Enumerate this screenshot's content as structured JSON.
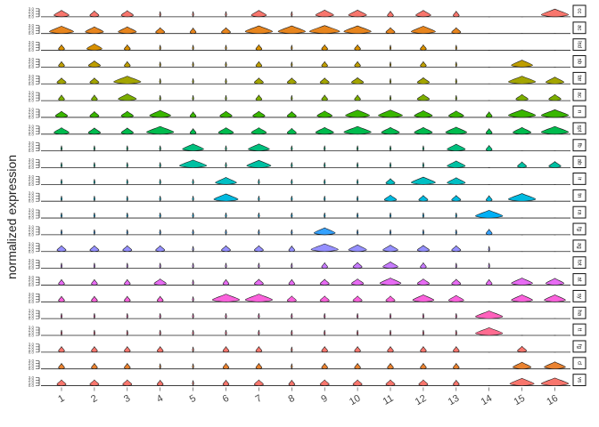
{
  "chart_data": {
    "type": "violin",
    "ylabel": "normalized expression",
    "clusters": [
      "1",
      "2",
      "3",
      "4",
      "5",
      "6",
      "7",
      "8",
      "9",
      "10",
      "11",
      "12",
      "13",
      "14",
      "15",
      "16"
    ],
    "tick_labels": [
      "0.0",
      "1.0",
      "2.0",
      "3.0"
    ],
    "genes": [
      "cc",
      "ac",
      "lsd",
      "sb",
      "tar",
      "ac",
      "n",
      "spt",
      "fb",
      "ab",
      "ir",
      "tn",
      "ra",
      "fg",
      "ag",
      "tot",
      "at",
      "sy",
      "ha",
      "tt",
      "fg",
      "cl",
      "vs"
    ],
    "colors": [
      "#F8766D",
      "#E7851E",
      "#D89000",
      "#BD9D00",
      "#A3A500",
      "#7CAE00",
      "#39B600",
      "#00BB4E",
      "#00BF7D",
      "#00C1A3",
      "#00BFC4",
      "#00BAE0",
      "#00B0F6",
      "#35A2FF",
      "#9590FF",
      "#C77CFF",
      "#E76BF3",
      "#FA62DB",
      "#FF62BC",
      "#FF6C91",
      "#F8766D",
      "#EA8331",
      "#F8766D"
    ],
    "expression_levels": [
      [
        0.5,
        0.3,
        0.4,
        0.1,
        0.1,
        0.1,
        0.5,
        0.1,
        0.6,
        0.6,
        0.2,
        0.5,
        0.2,
        0.0,
        0.0,
        0.9
      ],
      [
        0.8,
        0.6,
        0.6,
        0.3,
        0.2,
        0.3,
        0.9,
        0.9,
        1.0,
        0.9,
        0.3,
        0.8,
        0.3,
        0.0,
        0.0,
        0.0
      ],
      [
        0.2,
        0.5,
        0.2,
        0.1,
        0.1,
        0.1,
        0.2,
        0.1,
        0.2,
        0.2,
        0.1,
        0.2,
        0.1,
        0.0,
        0.0,
        0.0
      ],
      [
        0.2,
        0.4,
        0.2,
        0.1,
        0.1,
        0.1,
        0.2,
        0.1,
        0.2,
        0.2,
        0.1,
        0.2,
        0.1,
        0.0,
        0.7,
        0.0
      ],
      [
        0.3,
        0.3,
        0.9,
        0.1,
        0.1,
        0.1,
        0.3,
        0.3,
        0.3,
        0.4,
        0.1,
        0.4,
        0.1,
        0.0,
        0.9,
        0.6
      ],
      [
        0.2,
        0.2,
        0.6,
        0.1,
        0.1,
        0.1,
        0.2,
        0.1,
        0.2,
        0.2,
        0.1,
        0.4,
        0.1,
        0.0,
        0.4,
        0.4
      ],
      [
        0.4,
        0.3,
        0.4,
        0.7,
        0.2,
        0.4,
        0.4,
        0.3,
        0.5,
        0.8,
        0.8,
        0.6,
        0.5,
        0.2,
        0.9,
        0.9
      ],
      [
        0.5,
        0.4,
        0.4,
        0.9,
        0.2,
        0.5,
        0.5,
        0.3,
        0.6,
        0.9,
        0.6,
        0.6,
        0.7,
        0.2,
        0.6,
        0.9
      ],
      [
        0.1,
        0.1,
        0.1,
        0.1,
        0.7,
        0.1,
        0.7,
        0.1,
        0.1,
        0.1,
        0.1,
        0.1,
        0.6,
        0.2,
        0.0,
        0.0
      ],
      [
        0.1,
        0.1,
        0.1,
        0.1,
        0.9,
        0.1,
        0.8,
        0.1,
        0.1,
        0.1,
        0.1,
        0.1,
        0.6,
        0.0,
        0.3,
        0.4
      ],
      [
        0.1,
        0.1,
        0.1,
        0.1,
        0.1,
        0.7,
        0.1,
        0.1,
        0.1,
        0.1,
        0.3,
        0.8,
        0.6,
        0.0,
        0.0,
        0.0
      ],
      [
        0.1,
        0.1,
        0.1,
        0.1,
        0.1,
        0.8,
        0.1,
        0.1,
        0.1,
        0.1,
        0.4,
        0.3,
        0.3,
        0.2,
        0.9,
        0.0
      ],
      [
        0.1,
        0.1,
        0.1,
        0.1,
        0.1,
        0.1,
        0.1,
        0.1,
        0.1,
        0.1,
        0.1,
        0.1,
        0.1,
        0.9,
        0.0,
        0.0
      ],
      [
        0.1,
        0.1,
        0.1,
        0.1,
        0.1,
        0.1,
        0.1,
        0.1,
        0.7,
        0.1,
        0.1,
        0.1,
        0.1,
        0.2,
        0.0,
        0.0
      ],
      [
        0.3,
        0.3,
        0.3,
        0.3,
        0.1,
        0.3,
        0.3,
        0.2,
        0.9,
        0.6,
        0.5,
        0.4,
        0.3,
        0.1,
        0.0,
        0.0
      ],
      [
        0.1,
        0.1,
        0.1,
        0.1,
        0.1,
        0.1,
        0.1,
        0.1,
        0.2,
        0.3,
        0.5,
        0.2,
        0.1,
        0.1,
        0.0,
        0.0
      ],
      [
        0.2,
        0.2,
        0.2,
        0.4,
        0.1,
        0.2,
        0.3,
        0.2,
        0.3,
        0.4,
        0.7,
        0.4,
        0.3,
        0.2,
        0.7,
        0.6
      ],
      [
        0.2,
        0.2,
        0.2,
        0.2,
        0.1,
        0.9,
        0.9,
        0.3,
        0.3,
        0.3,
        0.3,
        0.7,
        0.5,
        0.0,
        0.7,
        0.7
      ],
      [
        0.1,
        0.1,
        0.1,
        0.1,
        0.1,
        0.1,
        0.1,
        0.1,
        0.1,
        0.1,
        0.1,
        0.1,
        0.1,
        0.9,
        0.0,
        0.0
      ],
      [
        0.1,
        0.1,
        0.1,
        0.1,
        0.1,
        0.1,
        0.1,
        0.1,
        0.1,
        0.1,
        0.1,
        0.1,
        0.1,
        0.9,
        0.0,
        0.0
      ],
      [
        0.2,
        0.2,
        0.2,
        0.2,
        0.1,
        0.2,
        0.2,
        0.1,
        0.2,
        0.2,
        0.2,
        0.2,
        0.2,
        0.0,
        0.3,
        0.0
      ],
      [
        0.2,
        0.2,
        0.2,
        0.1,
        0.1,
        0.2,
        0.2,
        0.1,
        0.2,
        0.2,
        0.2,
        0.2,
        0.2,
        0.0,
        0.6,
        0.7
      ],
      [
        0.3,
        0.3,
        0.3,
        0.2,
        0.1,
        0.2,
        0.3,
        0.2,
        0.3,
        0.3,
        0.3,
        0.3,
        0.2,
        0.0,
        0.8,
        0.9
      ]
    ],
    "legend": "none",
    "grid": false
  }
}
